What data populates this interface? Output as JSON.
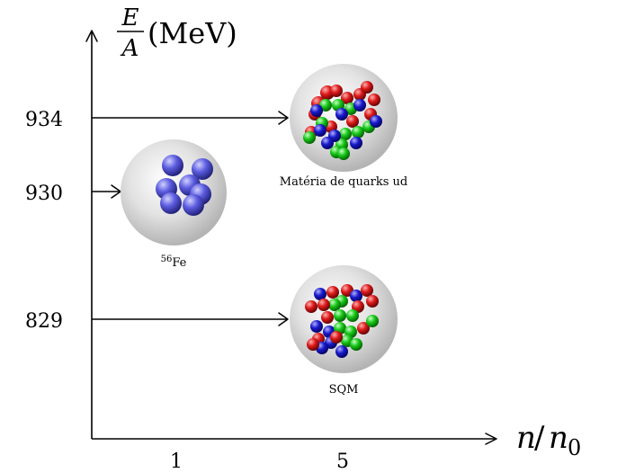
{
  "y_axis": {
    "numerator": "E",
    "denominator": "A",
    "unit": "(MeV)"
  },
  "x_axis": {
    "n": "n",
    "slash": "/",
    "n0": "n",
    "n0_sub": "0"
  },
  "y_ticks": [
    "934",
    "930",
    "829"
  ],
  "x_ticks": [
    "1",
    "5"
  ],
  "nodes": {
    "fe": {
      "caption_sup": "56",
      "caption": "Fe"
    },
    "ud": {
      "caption": "Matéria de quarks ud"
    },
    "sqm": {
      "caption": "SQM"
    }
  },
  "colors": {
    "quark_red": "#cc1111",
    "quark_green": "#11bb11",
    "quark_blue": "#1111bb",
    "nucleon": "#5555dd",
    "bubble": "#c8c8c8"
  }
}
